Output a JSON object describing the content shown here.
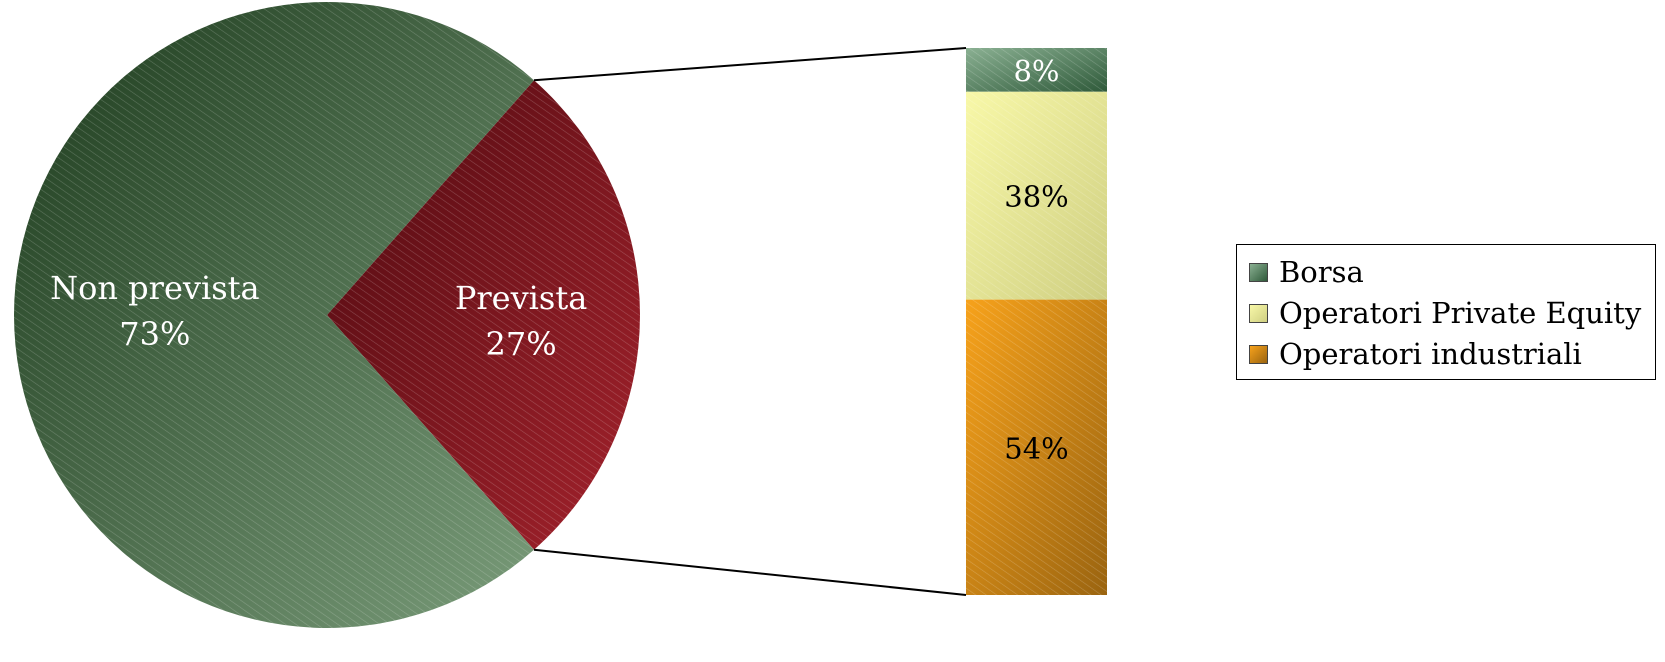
{
  "chart_data": {
    "type": "pie",
    "pie": {
      "slices": [
        {
          "label": "Non prevista",
          "value": 73,
          "value_text": "73%",
          "color_dark": "#1c3a1c",
          "color_light": "#7a9c7a",
          "text_color": "#ffffff"
        },
        {
          "label": "Prevista",
          "value": 27,
          "value_text": "27%",
          "color_dark": "#4e0a10",
          "color_light": "#a4222c",
          "text_color": "#ffffff"
        }
      ],
      "exploded_slice": "Prevista"
    },
    "breakdown": {
      "type": "stacked-bar",
      "segments": [
        {
          "name": "Borsa",
          "value": 8,
          "value_text": "8%",
          "color_dark": "#2f5a3a",
          "color_light": "#8ab092"
        },
        {
          "name": "Operatori Private Equity",
          "value": 38,
          "value_text": "38%",
          "color_dark": "#cfcf82",
          "color_light": "#f8f8a8"
        },
        {
          "name": "Operatori industriali",
          "value": 54,
          "value_text": "54%",
          "color_dark": "#9a6410",
          "color_light": "#f7a21b"
        }
      ]
    },
    "legend": {
      "position": "right",
      "entries": [
        "Borsa",
        "Operatori Private Equity",
        "Operatori industriali"
      ]
    }
  }
}
